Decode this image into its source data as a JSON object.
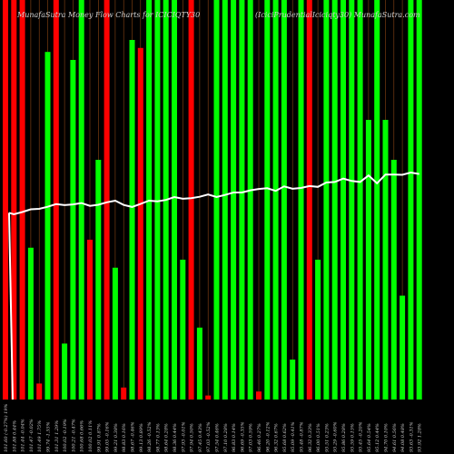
{
  "header": {
    "title_left": "MunafaSutra  Money Flow  Charts for ICICIQTY30",
    "title_right": "(IciciPrudentialIciciqty30)  MunafaSutra.com"
  },
  "colors": {
    "background": "#000000",
    "up_bar": "#00ff00",
    "down_bar": "#ff0000",
    "price_line": "#ffffff",
    "grid_line": "#8b4513",
    "label": "#cfcfcf"
  },
  "chart_data": {
    "type": "bar",
    "title": "MunafaSutra  Money Flow  Charts for ICICIQTY30",
    "subtitle": "(IciciPrudentialIciciqty30)  MunafaSutra.com",
    "categories": [
      "101.60 (-0.27%) 19%",
      "101.88 0.44%",
      "101.44 -0.04%",
      "101.47 -0.02%",
      "101.49 1.75%",
      "99.74 -1.55%",
      "101.31 1.29%",
      "100.02 -0.19%",
      "100.21 -0.47%",
      "100.68 0.66%",
      "100.02 0.11%",
      "99.91 0.87%",
      "99.05 -0.16%",
      "99.21 0.38%",
      "98.83 0.16%",
      "98.67 -0.46%",
      "99.13 0.89%",
      "98.26 -0.52%",
      "98.77 0.13%",
      "98.64 0.28%",
      "98.36 0.44%",
      "97.93 -0.01%",
      "97.94 0.50%",
      "97.45 0.43%",
      "97.03 -0.52%",
      "97.54 0.46%",
      "97.10 0.28%",
      "96.83 0.14%",
      "96.69 -0.35%",
      "97.03 0.59%",
      "96.46 0.27%",
      "96.20 -0.12%",
      "96.32 0.67%",
      "95.68 0.62%",
      "95.09 -0.41%",
      "95.48 -0.87%",
      "96.32 0.33%",
      "96.00 0.51%",
      "95.51 0.23%",
      "95.29 -0.60%",
      "95.86 0.28%",
      "95.59 0.15%",
      "95.45 -0.20%",
      "95.64 0.54%",
      "95.12 0.44%",
      "94.70 0.10%",
      "94.61 0.56%",
      "94.08 0.48%",
      "93.63 -0.31%",
      "93.92 1.28%"
    ],
    "values": [
      100,
      100,
      100,
      38,
      4,
      87,
      100,
      14,
      85,
      100,
      40,
      60,
      100,
      33,
      3,
      90,
      88,
      100,
      100,
      100,
      100,
      35,
      100,
      18,
      1,
      100,
      100,
      100,
      100,
      100,
      2,
      100,
      100,
      100,
      10,
      100,
      100,
      35,
      100,
      100,
      100,
      100,
      100,
      70,
      100,
      70,
      60,
      26,
      100,
      100
    ],
    "direction": [
      "down",
      "down",
      "down",
      "up",
      "down",
      "up",
      "down",
      "up",
      "up",
      "up",
      "down",
      "up",
      "down",
      "up",
      "down",
      "up",
      "down",
      "up",
      "up",
      "up",
      "up",
      "up",
      "down",
      "up",
      "down",
      "up",
      "up",
      "up",
      "up",
      "up",
      "down",
      "up",
      "up",
      "up",
      "up",
      "up",
      "down",
      "up",
      "up",
      "up",
      "up",
      "up",
      "up",
      "up",
      "up",
      "up",
      "up",
      "up",
      "up",
      "up"
    ],
    "price_line": [
      93.92,
      93.63,
      94.08,
      94.61,
      94.7,
      95.12,
      95.64,
      95.45,
      95.59,
      95.86,
      95.29,
      95.51,
      96.0,
      96.32,
      95.48,
      95.09,
      95.68,
      96.32,
      96.2,
      96.46,
      97.03,
      96.69,
      96.83,
      97.1,
      97.54,
      97.03,
      97.45,
      97.94,
      97.93,
      98.36,
      98.64,
      98.77,
      98.26,
      99.13,
      98.67,
      98.83,
      99.21,
      99.05,
      99.91,
      100.02,
      100.68,
      100.21,
      100.02,
      101.31,
      99.74,
      101.49,
      101.47,
      101.44,
      101.88,
      101.6
    ],
    "xlabel": "",
    "ylabel": "",
    "ylim": [
      0,
      100
    ],
    "grid": true
  }
}
